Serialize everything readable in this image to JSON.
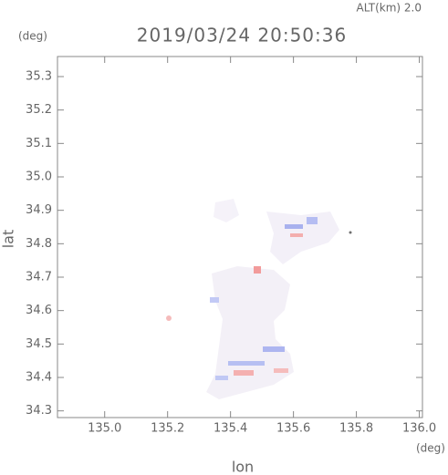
{
  "alt_label": "ALT(km) 2.0",
  "chart_data": {
    "type": "map",
    "title": "2019/03/24 20:50:36",
    "x_label": "lon",
    "y_label": "lat",
    "x_unit": "(deg)",
    "y_unit": "(deg)",
    "xlim": [
      134.85,
      136.01
    ],
    "ylim": [
      34.28,
      35.36
    ],
    "xticks": [
      {
        "value": 135.0,
        "label": "135.0"
      },
      {
        "value": 135.2,
        "label": "135.2"
      },
      {
        "value": 135.4,
        "label": "135.4"
      },
      {
        "value": 135.6,
        "label": "135.6"
      },
      {
        "value": 135.8,
        "label": "135.8"
      },
      {
        "value": 136.0,
        "label": "136.0"
      }
    ],
    "yticks": [
      {
        "value": 34.3,
        "label": "34.3"
      },
      {
        "value": 34.4,
        "label": "34.4"
      },
      {
        "value": 34.5,
        "label": "34.5"
      },
      {
        "value": 34.6,
        "label": "34.6"
      },
      {
        "value": 34.7,
        "label": "34.7"
      },
      {
        "value": 34.8,
        "label": "34.8"
      },
      {
        "value": 34.9,
        "label": "34.9"
      },
      {
        "value": 35.0,
        "label": "35.0"
      },
      {
        "value": 35.1,
        "label": "35.1"
      },
      {
        "value": 35.2,
        "label": "35.2"
      },
      {
        "value": 35.3,
        "label": "35.3"
      }
    ]
  }
}
